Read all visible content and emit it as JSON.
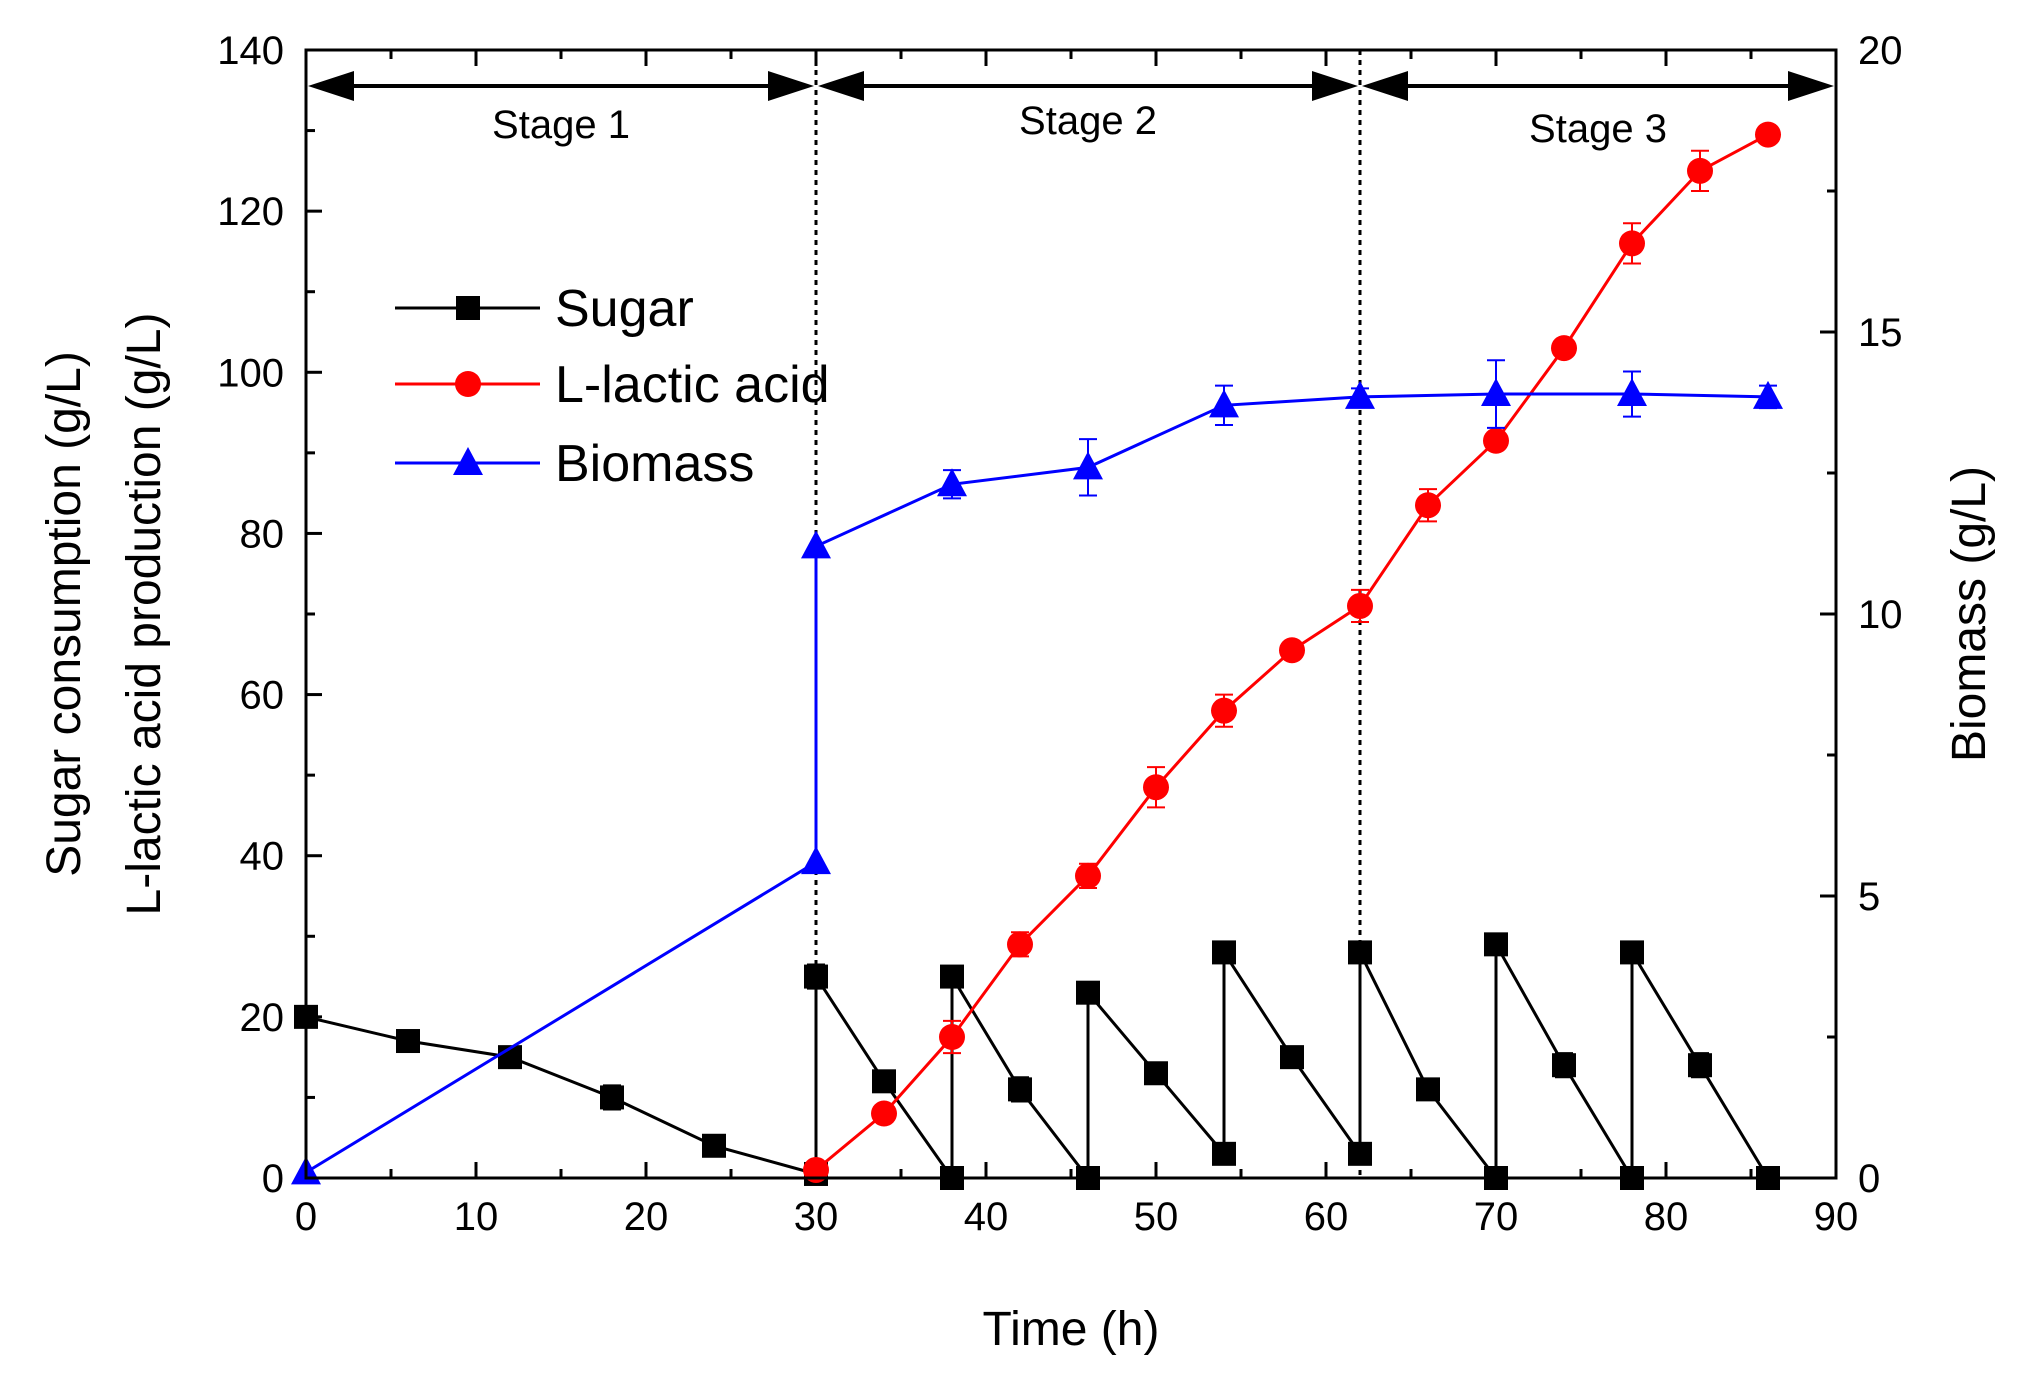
{
  "chart_data": {
    "type": "line",
    "xlabel": "Time (h)",
    "ylabel_left_line1": "Sugar consumption (g/L)",
    "ylabel_left_line2": "L-lactic acid production (g/L)",
    "ylabel_right": "Biomass (g/L)",
    "xlim": [
      0,
      90
    ],
    "ylim_left": [
      0,
      140
    ],
    "ylim_right": [
      0,
      20
    ],
    "x_ticks": [
      0,
      10,
      20,
      30,
      40,
      50,
      60,
      70,
      80,
      90
    ],
    "y_left_ticks": [
      0,
      20,
      40,
      60,
      80,
      100,
      120,
      140
    ],
    "y_right_ticks": [
      0,
      5,
      10,
      15,
      20
    ],
    "stage_boundaries": [
      0,
      30,
      62,
      90
    ],
    "stages": [
      {
        "label": "Stage 1",
        "start": 0,
        "end": 30
      },
      {
        "label": "Stage 2",
        "start": 30,
        "end": 62
      },
      {
        "label": "Stage 3",
        "start": 62,
        "end": 90
      }
    ],
    "legend_position": "upper-left",
    "series": [
      {
        "name": "Sugar",
        "axis": "left",
        "color": "#000000",
        "marker": "square",
        "points": [
          {
            "x": 0,
            "y": 20
          },
          {
            "x": 6,
            "y": 17
          },
          {
            "x": 12,
            "y": 15
          },
          {
            "x": 18,
            "y": 10,
            "err": 1.5
          },
          {
            "x": 24,
            "y": 4
          },
          {
            "x": 30,
            "y": 0.5
          },
          {
            "x": 30,
            "y": 25,
            "err": 1.5
          },
          {
            "x": 34,
            "y": 12
          },
          {
            "x": 38,
            "y": 0
          },
          {
            "x": 38,
            "y": 25
          },
          {
            "x": 42,
            "y": 11,
            "err": 1.5
          },
          {
            "x": 46,
            "y": 0
          },
          {
            "x": 46,
            "y": 23
          },
          {
            "x": 50,
            "y": 13
          },
          {
            "x": 54,
            "y": 3
          },
          {
            "x": 54,
            "y": 28
          },
          {
            "x": 58,
            "y": 15
          },
          {
            "x": 62,
            "y": 3
          },
          {
            "x": 62,
            "y": 28
          },
          {
            "x": 66,
            "y": 11
          },
          {
            "x": 70,
            "y": 0
          },
          {
            "x": 70,
            "y": 29
          },
          {
            "x": 74,
            "y": 14,
            "err": 1.5
          },
          {
            "x": 78,
            "y": 0
          },
          {
            "x": 78,
            "y": 28
          },
          {
            "x": 82,
            "y": 14,
            "err": 1.5
          },
          {
            "x": 86,
            "y": 0
          }
        ]
      },
      {
        "name": "L-lactic acid",
        "axis": "left",
        "color": "#ff0000",
        "marker": "circle",
        "points": [
          {
            "x": 30,
            "y": 1
          },
          {
            "x": 34,
            "y": 8
          },
          {
            "x": 38,
            "y": 17.5,
            "err": 2
          },
          {
            "x": 42,
            "y": 29,
            "err": 1.5
          },
          {
            "x": 46,
            "y": 37.5,
            "err": 1.5
          },
          {
            "x": 50,
            "y": 48.5,
            "err": 2.5
          },
          {
            "x": 54,
            "y": 58,
            "err": 2
          },
          {
            "x": 58,
            "y": 65.5,
            "err": 1
          },
          {
            "x": 62,
            "y": 71,
            "err": 2
          },
          {
            "x": 66,
            "y": 83.5,
            "err": 2
          },
          {
            "x": 70,
            "y": 91.5,
            "err": 1
          },
          {
            "x": 74,
            "y": 103,
            "err": 1
          },
          {
            "x": 78,
            "y": 116,
            "err": 2.5
          },
          {
            "x": 82,
            "y": 125,
            "err": 2.5
          },
          {
            "x": 86,
            "y": 129.5
          }
        ]
      },
      {
        "name": "Biomass",
        "axis": "right",
        "color": "#0000ff",
        "marker": "triangle",
        "points": [
          {
            "x": 0,
            "y": 0.1
          },
          {
            "x": 30,
            "y": 5.6
          },
          {
            "x": 30,
            "y": 11.2
          },
          {
            "x": 38,
            "y": 12.3,
            "err": 0.25
          },
          {
            "x": 46,
            "y": 12.6,
            "err": 0.5
          },
          {
            "x": 54,
            "y": 13.7,
            "err": 0.35
          },
          {
            "x": 62,
            "y": 13.85,
            "err": 0.15
          },
          {
            "x": 70,
            "y": 13.9,
            "err": 0.6
          },
          {
            "x": 78,
            "y": 13.9,
            "err": 0.4
          },
          {
            "x": 86,
            "y": 13.85,
            "err": 0.2
          }
        ]
      }
    ]
  }
}
